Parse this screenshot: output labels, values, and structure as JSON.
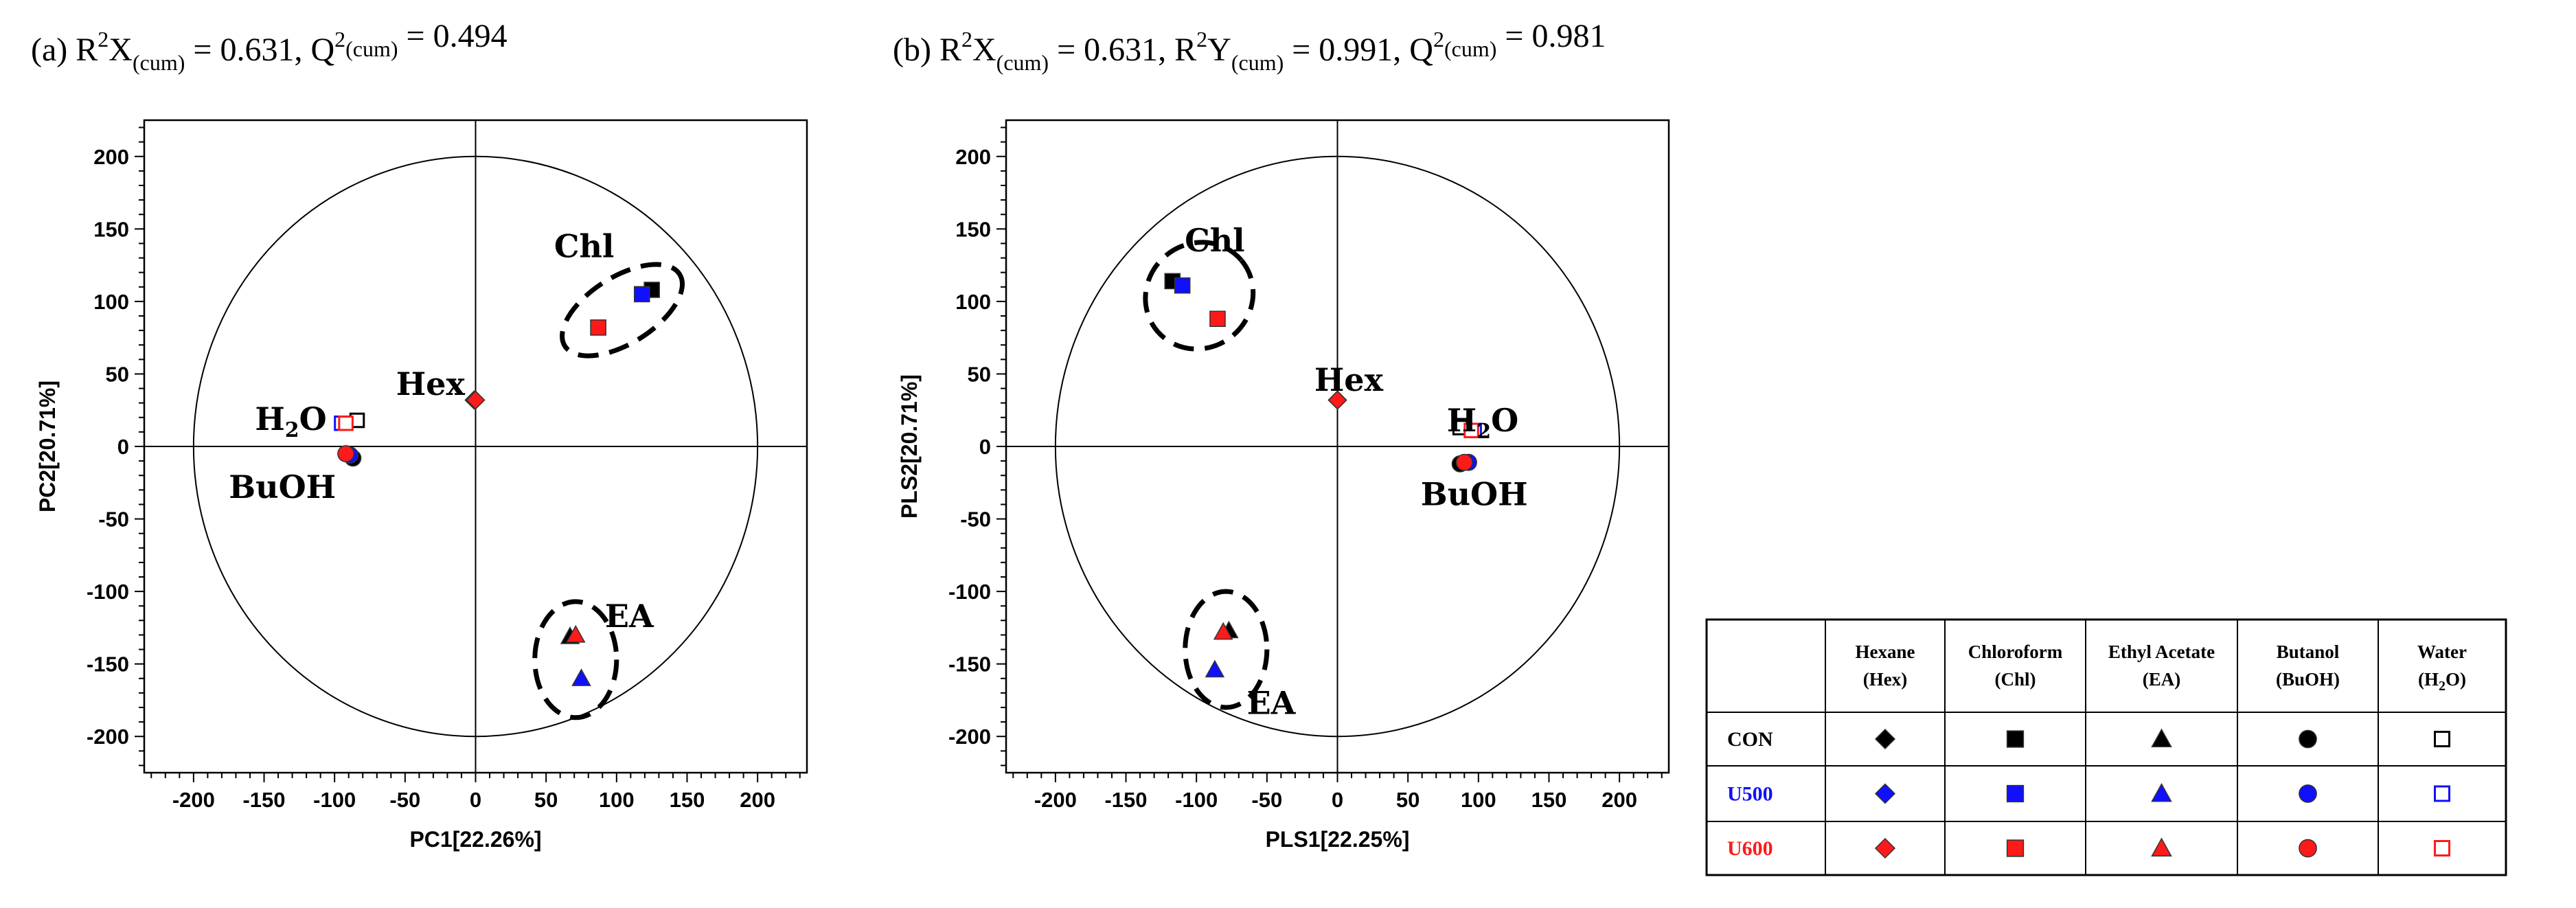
{
  "colors": {
    "CON": "#000000",
    "U500": "#1010ff",
    "U600": "#ff1a1a"
  },
  "chart_data": [
    {
      "type": "scatter",
      "title": {
        "prefix": "(a) R",
        "sup1": "2",
        "x": "X",
        "sub1": "(cum)",
        "mid": " = 0.631, Q",
        "sup2": "2",
        "sub2": "(cum)",
        "end": " = 0.494"
      },
      "xlabel": "PC1[22.26%]",
      "ylabel": "PC2[20.71%]",
      "xlim": [
        -235,
        235
      ],
      "ylim": [
        -225,
        225
      ],
      "xticks": [
        -200,
        -150,
        -100,
        -50,
        0,
        50,
        100,
        150,
        200
      ],
      "yticks": [
        -200,
        -150,
        -100,
        -50,
        0,
        50,
        100,
        150,
        200
      ],
      "ellipse_radius": 200,
      "series": [
        {
          "name": "CON",
          "points": [
            {
              "fraction": "Hex",
              "x": -1,
              "y": 32
            },
            {
              "fraction": "Chl",
              "x": 125,
              "y": 108
            },
            {
              "fraction": "EA",
              "x": 67,
              "y": -131
            },
            {
              "fraction": "BuOH",
              "x": -87,
              "y": -8
            },
            {
              "fraction": "H2O",
              "x": -84,
              "y": 18
            }
          ]
        },
        {
          "name": "U500",
          "points": [
            {
              "fraction": "Hex",
              "x": -1,
              "y": 32
            },
            {
              "fraction": "Chl",
              "x": 118,
              "y": 105
            },
            {
              "fraction": "EA",
              "x": 75,
              "y": -160
            },
            {
              "fraction": "BuOH",
              "x": -89,
              "y": -6
            },
            {
              "fraction": "H2O",
              "x": -95,
              "y": 16
            }
          ]
        },
        {
          "name": "U600",
          "points": [
            {
              "fraction": "Hex",
              "x": 0,
              "y": 32
            },
            {
              "fraction": "Chl",
              "x": 87,
              "y": 82
            },
            {
              "fraction": "EA",
              "x": 71,
              "y": -130
            },
            {
              "fraction": "BuOH",
              "x": -92,
              "y": -5
            },
            {
              "fraction": "H2O",
              "x": -92,
              "y": 16
            }
          ]
        }
      ],
      "group_labels": [
        {
          "text": "Chl",
          "x": 77,
          "y": 138
        },
        {
          "text": "Hex",
          "x": -32,
          "y": 43
        },
        {
          "text": "H",
          "sub": "2",
          "after": "O",
          "x": -131,
          "y": 19
        },
        {
          "text": "BuOH",
          "x": -137,
          "y": -28
        },
        {
          "text": "EA",
          "x": 109,
          "y": -117
        }
      ],
      "group_ellipses": [
        {
          "cx": 104,
          "cy": 94,
          "rx": 48,
          "ry": 23,
          "angle": -32
        },
        {
          "cx": 71,
          "cy": -147,
          "rx": 29,
          "ry": 40,
          "angle": 0
        }
      ]
    },
    {
      "type": "scatter",
      "title": {
        "prefix": "(b) R",
        "sup1": "2",
        "x": "X",
        "sub1": "(cum)",
        "mid": " = 0.631, R",
        "sup2": "2",
        "y": "Y",
        "sub2": "(cum)",
        "mid2": " = 0.991, Q",
        "sup3": "2",
        "sub3": "(cum)",
        "end": " = 0.981"
      },
      "xlabel": "PLS1[22.25%]",
      "ylabel": "PLS2[20.71%]",
      "xlim": [
        -235,
        235
      ],
      "ylim": [
        -225,
        225
      ],
      "xticks": [
        -200,
        -150,
        -100,
        -50,
        0,
        50,
        100,
        150,
        200
      ],
      "yticks": [
        -200,
        -150,
        -100,
        -50,
        0,
        50,
        100,
        150,
        200
      ],
      "ellipse_radius": 200,
      "series": [
        {
          "name": "CON",
          "points": [
            {
              "fraction": "Hex",
              "x": 0,
              "y": 32
            },
            {
              "fraction": "Chl",
              "x": -117,
              "y": 114
            },
            {
              "fraction": "EA",
              "x": -77,
              "y": -127
            },
            {
              "fraction": "BuOH",
              "x": 87,
              "y": -12
            },
            {
              "fraction": "H2O",
              "x": 87,
              "y": 13
            }
          ]
        },
        {
          "name": "U500",
          "points": [
            {
              "fraction": "Hex",
              "x": 0,
              "y": 32
            },
            {
              "fraction": "Chl",
              "x": -110,
              "y": 111
            },
            {
              "fraction": "EA",
              "x": -87,
              "y": -154
            },
            {
              "fraction": "BuOH",
              "x": 93,
              "y": -11
            },
            {
              "fraction": "H2O",
              "x": 97,
              "y": 11
            }
          ]
        },
        {
          "name": "U600",
          "points": [
            {
              "fraction": "Hex",
              "x": 0,
              "y": 32
            },
            {
              "fraction": "Chl",
              "x": -85,
              "y": 88
            },
            {
              "fraction": "EA",
              "x": -81,
              "y": -128
            },
            {
              "fraction": "BuOH",
              "x": 90,
              "y": -11
            },
            {
              "fraction": "H2O",
              "x": 95,
              "y": 11
            }
          ]
        }
      ],
      "group_labels": [
        {
          "text": "Chl",
          "x": -87,
          "y": 142
        },
        {
          "text": "Hex",
          "x": 8,
          "y": 46
        },
        {
          "text": "H",
          "sub": "2",
          "after": "O",
          "x": 103,
          "y": 18
        },
        {
          "text": "BuOH",
          "x": 97,
          "y": -33
        },
        {
          "text": "EA",
          "x": -47,
          "y": -177
        }
      ],
      "group_ellipses": [
        {
          "cx": -98,
          "cy": 104,
          "rx": 39,
          "ry": 36,
          "angle": -40
        },
        {
          "cx": -79,
          "cy": -140,
          "rx": 29,
          "ry": 40,
          "angle": 0
        }
      ]
    }
  ],
  "legend_table": {
    "columns": [
      {
        "line1": "Hexane",
        "line2": "(Hex)",
        "marker": "diamond"
      },
      {
        "line1": "Chloroform",
        "line2": "(Chl)",
        "marker": "square"
      },
      {
        "line1": "Ethyl Acetate",
        "line2": "(EA)",
        "marker": "triangle"
      },
      {
        "line1": "Butanol",
        "line2": "(BuOH)",
        "marker": "circle"
      },
      {
        "line1": "Water",
        "line2": "(H",
        "line2_sub": "2",
        "line2_end": "O)",
        "marker": "open-square"
      }
    ],
    "rows": [
      {
        "label": "CON",
        "color": "#000000"
      },
      {
        "label": "U500",
        "color": "#1010ff"
      },
      {
        "label": "U600",
        "color": "#ff1a1a"
      }
    ]
  }
}
